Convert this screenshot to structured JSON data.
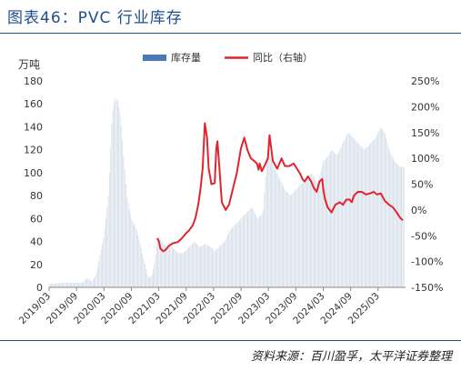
{
  "title": "图表46：PVC 行业库存",
  "source": "资料来源：百川盈孚，太平洋证券整理",
  "chart_data": {
    "type": "bar+line",
    "ylabel_left": "万吨",
    "y_left": {
      "min": 0,
      "max": 180,
      "ticks": [
        "0",
        "20",
        "40",
        "60",
        "80",
        "100",
        "120",
        "140",
        "160",
        "180"
      ]
    },
    "y_right": {
      "min": -150,
      "max": 250,
      "ticks": [
        "-150%",
        "-100%",
        "-50%",
        "0%",
        "50%",
        "100%",
        "150%",
        "200%",
        "250%"
      ]
    },
    "x_ticks": [
      "2019/03",
      "2019/09",
      "2020/03",
      "2020/09",
      "2021/03",
      "2021/09",
      "2022/03",
      "2022/09",
      "2023/03",
      "2023/09",
      "2024/03",
      "2024/09",
      "2025/03"
    ],
    "legend": {
      "position": "top",
      "items": [
        {
          "name": "库存量",
          "color": "#4a78b8",
          "kind": "bar"
        },
        {
          "name": "同比（右轴）",
          "color": "#e1252f",
          "kind": "line"
        }
      ]
    },
    "bar_color": "#d3dce8",
    "line_color": "#e1252f",
    "inventory": {
      "x": [
        2019.0,
        2019.25,
        2019.45,
        2019.6,
        2019.7,
        2019.78,
        2019.85,
        2020.0,
        2020.08,
        2020.15,
        2020.2,
        2020.25,
        2020.3,
        2020.35,
        2020.42,
        2020.5,
        2020.55,
        2020.6,
        2020.65,
        2020.7,
        2020.75,
        2020.8,
        2020.83,
        2020.87,
        2020.92,
        2020.96,
        2021.0,
        2021.05,
        2021.1,
        2021.15,
        2021.25,
        2021.35,
        2021.45,
        2021.55,
        2021.65,
        2021.75,
        2021.85,
        2021.95,
        2022.02,
        2022.1,
        2022.2,
        2022.3,
        2022.4,
        2022.5,
        2022.6,
        2022.7,
        2022.8,
        2022.9,
        2022.98,
        2023.05,
        2023.1,
        2023.2,
        2023.3,
        2023.4,
        2023.5,
        2023.6,
        2023.7,
        2023.8,
        2023.85,
        2023.9,
        2024.0,
        2024.1,
        2024.15,
        2024.25,
        2024.35,
        2024.45,
        2024.55,
        2024.65,
        2024.75,
        2024.85,
        2024.95,
        2025.0,
        2025.05,
        2025.12,
        2025.2,
        2025.3,
        2025.4,
        2025.47
      ],
      "values": [
        3,
        4,
        4,
        4,
        8,
        5,
        10,
        45,
        80,
        150,
        165,
        163,
        150,
        120,
        80,
        60,
        55,
        50,
        40,
        30,
        20,
        10,
        8,
        10,
        20,
        35,
        45,
        40,
        38,
        35,
        35,
        30,
        30,
        35,
        40,
        35,
        38,
        35,
        32,
        35,
        40,
        50,
        55,
        60,
        65,
        70,
        60,
        65,
        120,
        115,
        105,
        95,
        85,
        80,
        85,
        90,
        95,
        100,
        95,
        90,
        110,
        115,
        120,
        115,
        125,
        135,
        130,
        125,
        120,
        125,
        130,
        135,
        140,
        135,
        120,
        110,
        105,
        105
      ]
    },
    "yoy_percent": {
      "x": [
        2020.97,
        2021.0,
        2021.03,
        2021.08,
        2021.12,
        2021.18,
        2021.25,
        2021.35,
        2021.42,
        2021.5,
        2021.55,
        2021.62,
        2021.67,
        2021.72,
        2021.76,
        2021.78,
        2021.8,
        2021.84,
        2021.88,
        2021.91,
        2021.96,
        2022.02,
        2022.05,
        2022.07,
        2022.1,
        2022.15,
        2022.22,
        2022.28,
        2022.35,
        2022.42,
        2022.5,
        2022.56,
        2022.62,
        2022.68,
        2022.74,
        2022.79,
        2022.82,
        2022.84,
        2022.88,
        2022.94,
        2022.99,
        2023.02,
        2023.08,
        2023.16,
        2023.24,
        2023.3,
        2023.38,
        2023.46,
        2023.52,
        2023.58,
        2023.62,
        2023.66,
        2023.72,
        2023.78,
        2023.83,
        2023.88,
        2023.93,
        2023.98,
        2024.0,
        2024.03,
        2024.08,
        2024.15,
        2024.22,
        2024.3,
        2024.36,
        2024.42,
        2024.48,
        2024.52,
        2024.56,
        2024.63,
        2024.7,
        2024.78,
        2024.85,
        2024.92,
        2024.98,
        2025.05,
        2025.12,
        2025.2,
        2025.27,
        2025.34,
        2025.4,
        2025.45
      ],
      "values": [
        -55,
        -60,
        -75,
        -80,
        -78,
        -70,
        -65,
        -62,
        -55,
        -45,
        -40,
        -30,
        -15,
        10,
        40,
        60,
        80,
        168,
        140,
        80,
        50,
        52,
        120,
        133,
        90,
        15,
        0,
        10,
        40,
        70,
        120,
        140,
        115,
        100,
        95,
        90,
        78,
        90,
        75,
        88,
        100,
        145,
        95,
        80,
        100,
        85,
        85,
        90,
        80,
        70,
        60,
        55,
        65,
        55,
        42,
        35,
        55,
        60,
        40,
        22,
        5,
        -5,
        10,
        15,
        10,
        20,
        20,
        15,
        28,
        35,
        35,
        30,
        32,
        35,
        30,
        32,
        18,
        10,
        5,
        -5,
        -15,
        -20
      ]
    }
  }
}
